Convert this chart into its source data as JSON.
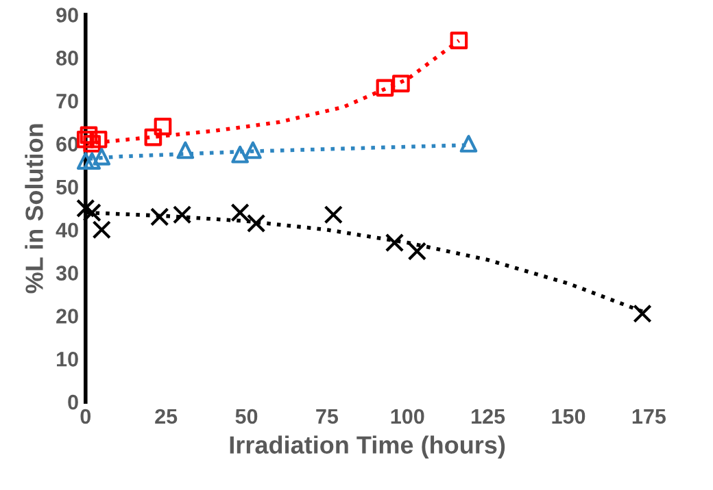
{
  "chart_data": {
    "type": "scatter",
    "xlabel": "Irradiation Time (hours)",
    "ylabel": "%L in Solution",
    "xlim": [
      0,
      175
    ],
    "xticks": [
      0,
      25,
      50,
      75,
      100,
      125,
      150,
      175
    ],
    "ylim": [
      0,
      90
    ],
    "yticks": [
      0,
      10,
      20,
      30,
      40,
      50,
      60,
      70,
      80,
      90
    ],
    "grid": false,
    "legend": false,
    "series": [
      {
        "marker": "square",
        "color": "#ff0000",
        "x": [
          0,
          1,
          2,
          4,
          21,
          24,
          93,
          98,
          116
        ],
        "values": [
          61,
          62,
          60,
          61,
          61.5,
          64,
          73,
          74,
          84
        ]
      },
      {
        "marker": "triangle",
        "color": "#2e86c1",
        "x": [
          0,
          2,
          5,
          31,
          48,
          52,
          119
        ],
        "values": [
          56,
          56,
          57,
          58.5,
          57.5,
          58.5,
          60
        ]
      },
      {
        "marker": "cross",
        "color": "#000000",
        "x": [
          0,
          2,
          5,
          23,
          30,
          48,
          53,
          77,
          96,
          103,
          173
        ],
        "values": [
          45,
          44,
          40,
          43,
          43.5,
          44,
          41.5,
          43.5,
          37,
          35,
          20.5
        ]
      },
      {
        "type": "line",
        "line_style": "dotted",
        "color": "#ff0000",
        "x": [
          0,
          20,
          40,
          60,
          80,
          100,
          116
        ],
        "values": [
          60,
          61.5,
          63,
          65,
          68.5,
          75,
          84
        ]
      },
      {
        "type": "line",
        "line_style": "dotted",
        "color": "#2e86c1",
        "x": [
          1,
          10,
          50,
          100,
          119
        ],
        "values": [
          56.5,
          57,
          58.2,
          59.3,
          59.7
        ]
      },
      {
        "type": "line",
        "line_style": "dotted",
        "color": "#000000",
        "x": [
          0,
          25,
          50,
          75,
          100,
          125,
          150,
          173
        ],
        "values": [
          44,
          43.2,
          42,
          40,
          37,
          33,
          27.5,
          21
        ]
      }
    ]
  }
}
